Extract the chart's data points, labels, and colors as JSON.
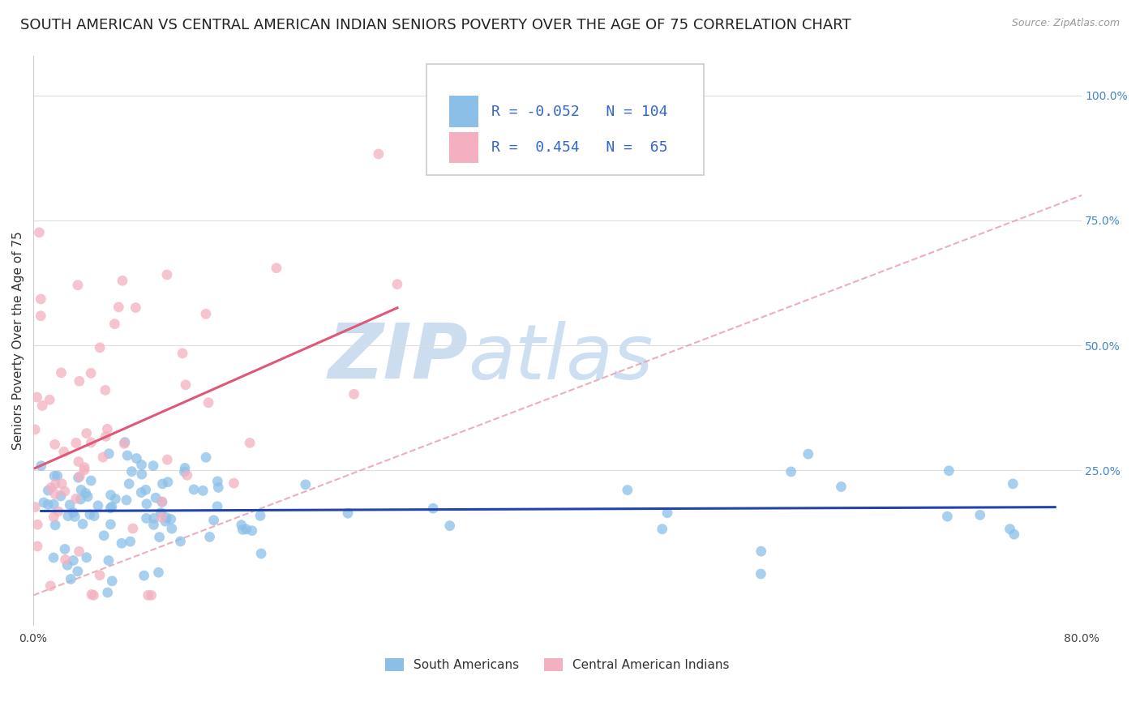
{
  "title": "SOUTH AMERICAN VS CENTRAL AMERICAN INDIAN SENIORS POVERTY OVER THE AGE OF 75 CORRELATION CHART",
  "source": "Source: ZipAtlas.com",
  "ylabel": "Seniors Poverty Over the Age of 75",
  "xlim": [
    0.0,
    0.8
  ],
  "ylim": [
    -0.06,
    1.08
  ],
  "yticks_right": [
    0.25,
    0.5,
    0.75,
    1.0
  ],
  "ytick_right_labels": [
    "25.0%",
    "50.0%",
    "75.0%",
    "100.0%"
  ],
  "group1_label": "South Americans",
  "group1_color": "#8bbfe8",
  "group1_R": -0.052,
  "group1_N": 104,
  "group1_line_color": "#2244aa",
  "group2_label": "Central American Indians",
  "group2_color": "#f4b0c0",
  "group2_R": 0.454,
  "group2_N": 65,
  "group2_line_color": "#e05878",
  "diag_line_color": "#e8a0b0",
  "background_color": "#ffffff",
  "watermark_color": "#ccddf0",
  "seed": 42,
  "title_fontsize": 13,
  "axis_label_fontsize": 11,
  "tick_fontsize": 10,
  "legend_fontsize": 13
}
